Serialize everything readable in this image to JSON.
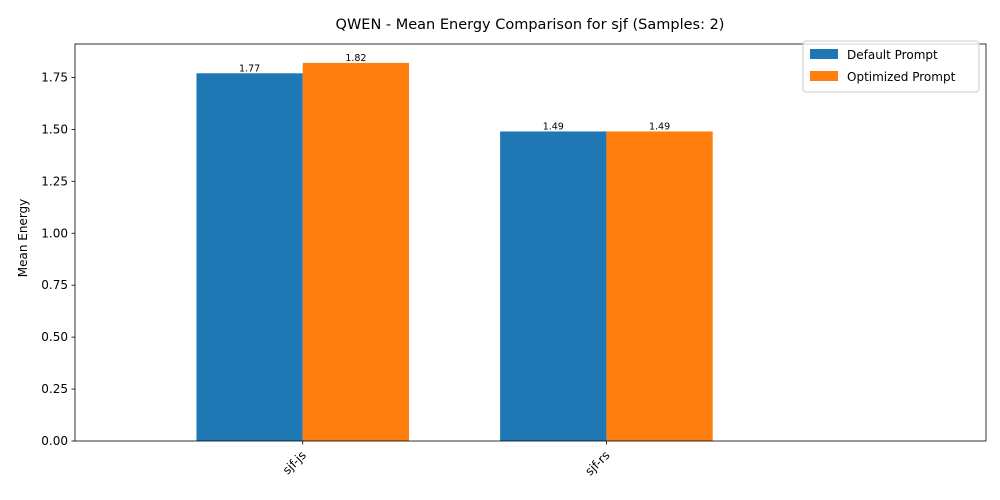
{
  "chart_data": {
    "type": "bar",
    "title": "QWEN - Mean Energy Comparison for sjf (Samples: 2)",
    "xlabel": "",
    "ylabel": "Mean Energy",
    "categories": [
      "sjf-js",
      "sjf-rs"
    ],
    "series": [
      {
        "name": "Default Prompt",
        "values": [
          1.77,
          1.49
        ],
        "labels": [
          "1.77",
          "1.49"
        ],
        "color": "#1f77b4"
      },
      {
        "name": "Optimized Prompt",
        "values": [
          1.82,
          1.49
        ],
        "labels": [
          "1.82",
          "1.49"
        ],
        "color": "#ff7f0e"
      }
    ],
    "ylim": [
      0,
      1.911
    ],
    "yticks": [
      0.0,
      0.25,
      0.5,
      0.75,
      1.0,
      1.25,
      1.5,
      1.75
    ],
    "ytick_labels": [
      "0.00",
      "0.25",
      "0.50",
      "0.75",
      "1.00",
      "1.25",
      "1.50",
      "1.75"
    ],
    "x_range": [
      -0.75,
      2.25
    ],
    "bar_width": 0.35,
    "grid": false,
    "legend_position": "top-right"
  }
}
